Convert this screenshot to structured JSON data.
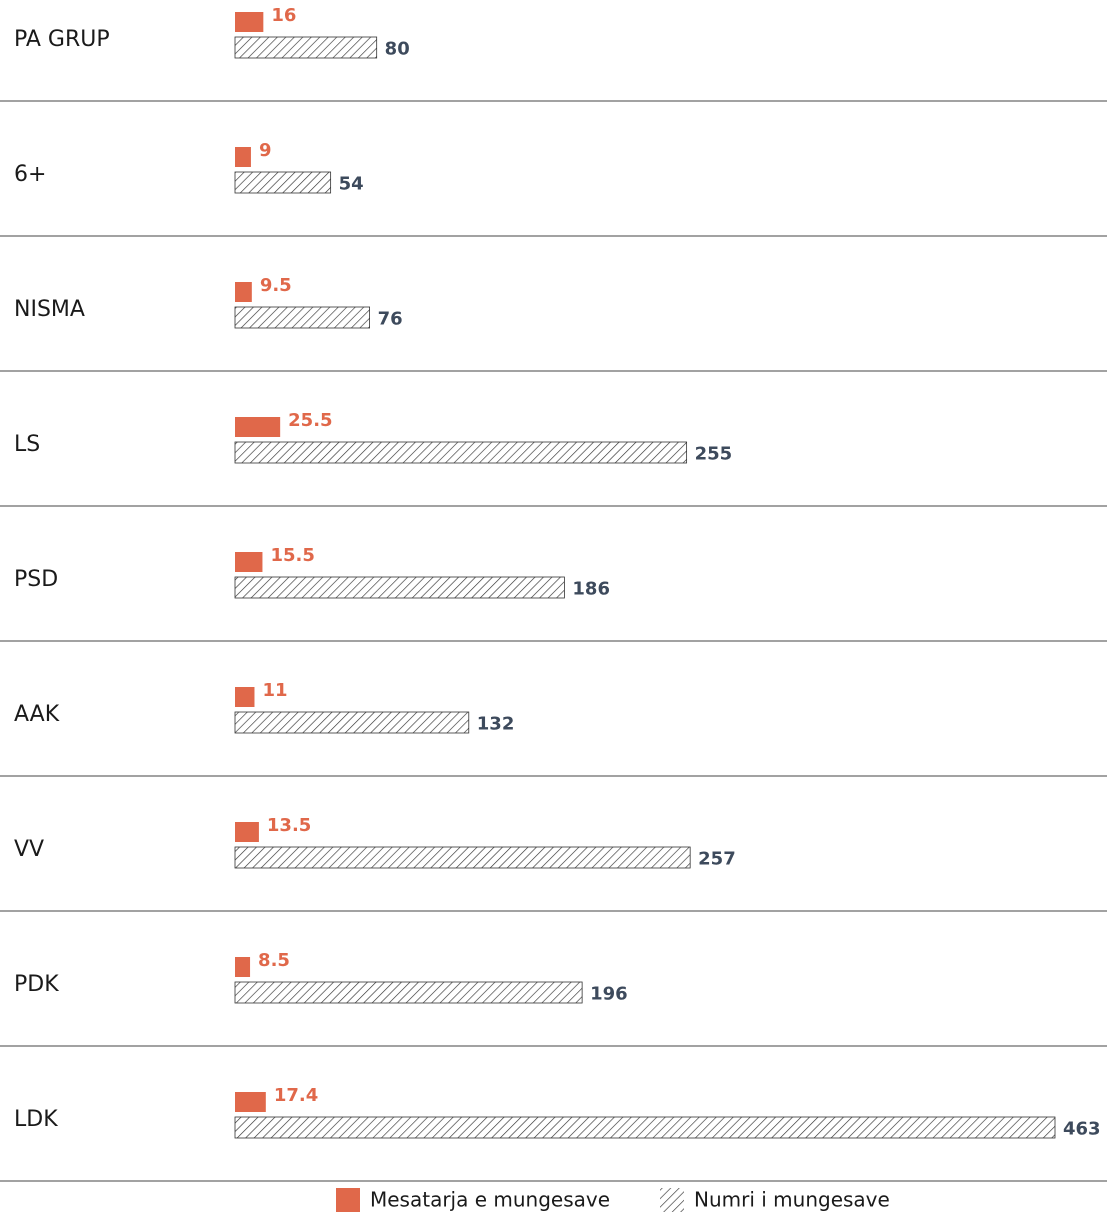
{
  "chart_data": {
    "type": "bar",
    "orientation": "horizontal",
    "categories": [
      "PA GRUP",
      "6+",
      "NISMA",
      "LS",
      "PSD",
      "AAK",
      "VV",
      "PDK",
      "LDK"
    ],
    "series": [
      {
        "name": "Mesatarja e mungesave",
        "color": "#e0684a",
        "values": [
          16,
          9,
          9.5,
          25.5,
          15.5,
          11,
          13.5,
          8.5,
          17.4
        ]
      },
      {
        "name": "Numri i mungesave",
        "color": "#333333",
        "pattern": "hatch",
        "values": [
          80,
          54,
          76,
          255,
          186,
          132,
          257,
          196,
          463
        ]
      }
    ],
    "legend": "bottom"
  }
}
